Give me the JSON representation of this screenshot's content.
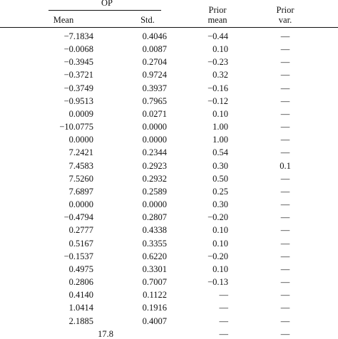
{
  "table": {
    "group_header": "OP",
    "columns": {
      "mean": "Mean",
      "std": "Std.",
      "prior_mean_line1": "Prior",
      "prior_mean_line2": "mean",
      "prior_var_line1": "Prior",
      "prior_var_line2": "var."
    },
    "rows": [
      {
        "mean": "−7.1834",
        "std": "0.4046",
        "prior_mean": "−0.44",
        "prior_var": "—"
      },
      {
        "mean": "−0.0068",
        "std": "0.0087",
        "prior_mean": "0.10",
        "prior_var": "—"
      },
      {
        "mean": "−0.3945",
        "std": "0.2704",
        "prior_mean": "−0.23",
        "prior_var": "—"
      },
      {
        "mean": "−0.3721",
        "std": "0.9724",
        "prior_mean": "0.32",
        "prior_var": "—"
      },
      {
        "mean": "−0.3749",
        "std": "0.3937",
        "prior_mean": "−0.16",
        "prior_var": "—"
      },
      {
        "mean": "−0.9513",
        "std": "0.7965",
        "prior_mean": "−0.12",
        "prior_var": "—"
      },
      {
        "mean": "0.0009",
        "std": "0.0271",
        "prior_mean": "0.10",
        "prior_var": "—"
      },
      {
        "mean": "−10.0775",
        "std": "0.0000",
        "prior_mean": "1.00",
        "prior_var": "—"
      },
      {
        "mean": "0.0000",
        "std": "0.0000",
        "prior_mean": "1.00",
        "prior_var": "—"
      },
      {
        "mean": "7.2421",
        "std": "0.2344",
        "prior_mean": "0.54",
        "prior_var": "—"
      },
      {
        "mean": "7.4583",
        "std": "0.2923",
        "prior_mean": "0.30",
        "prior_var": "0.1"
      },
      {
        "mean": "7.5260",
        "std": "0.2932",
        "prior_mean": "0.50",
        "prior_var": "—"
      },
      {
        "mean": "7.6897",
        "std": "0.2589",
        "prior_mean": "0.25",
        "prior_var": "—"
      },
      {
        "mean": "0.0000",
        "std": "0.0000",
        "prior_mean": "0.30",
        "prior_var": "—"
      },
      {
        "mean": "−0.4794",
        "std": "0.2807",
        "prior_mean": "−0.20",
        "prior_var": "—"
      },
      {
        "mean": "0.2777",
        "std": "0.4338",
        "prior_mean": "0.10",
        "prior_var": "—"
      },
      {
        "mean": "0.5167",
        "std": "0.3355",
        "prior_mean": "0.10",
        "prior_var": "—"
      },
      {
        "mean": "−0.1537",
        "std": "0.6220",
        "prior_mean": "−0.20",
        "prior_var": "—"
      },
      {
        "mean": "0.4975",
        "std": "0.3301",
        "prior_mean": "0.10",
        "prior_var": "—"
      },
      {
        "mean": "0.2806",
        "std": "0.7007",
        "prior_mean": "−0.13",
        "prior_var": "—"
      },
      {
        "mean": "0.4140",
        "std": "0.1122",
        "prior_mean": "—",
        "prior_var": "—"
      },
      {
        "mean": "1.0414",
        "std": "0.1916",
        "prior_mean": "—",
        "prior_var": "—"
      },
      {
        "mean": "2.1885",
        "std": "0.4007",
        "prior_mean": "—",
        "prior_var": "—"
      },
      {
        "mean": "17.8",
        "std": "",
        "prior_mean": "—",
        "prior_var": "—"
      }
    ]
  }
}
